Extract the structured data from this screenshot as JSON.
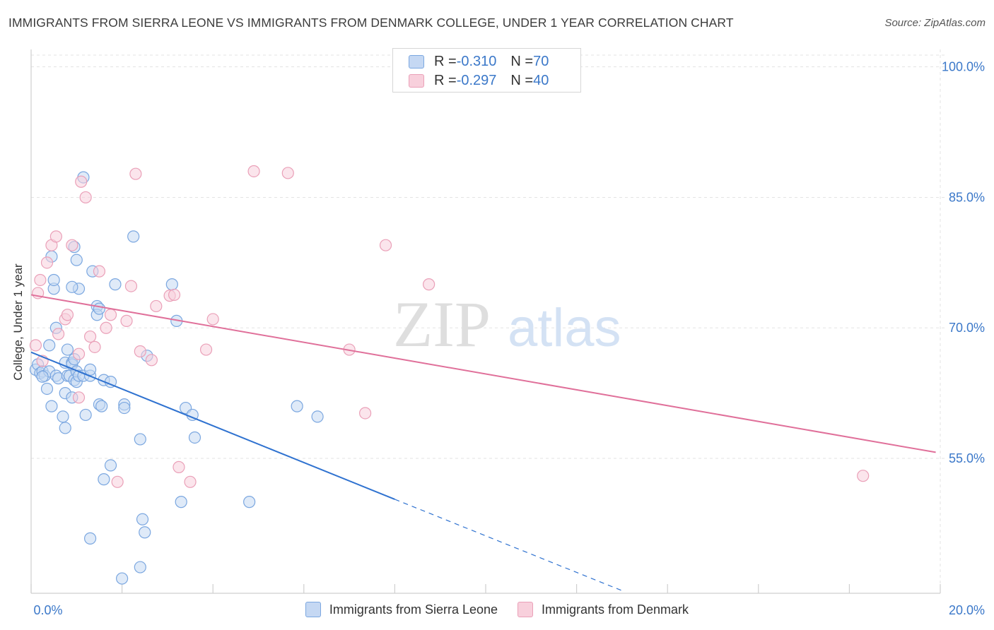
{
  "header": {
    "title": "IMMIGRANTS FROM SIERRA LEONE VS IMMIGRANTS FROM DENMARK COLLEGE, UNDER 1 YEAR CORRELATION CHART",
    "source": "Source: ZipAtlas.com"
  },
  "legend": {
    "r_label": "R = ",
    "n_label": "N = ",
    "rows": [
      {
        "r": "-0.310",
        "n": "70",
        "color": "#9ec0ec"
      },
      {
        "r": "-0.297",
        "n": "40",
        "color": "#f4b6c8"
      }
    ]
  },
  "watermark": {
    "zip": "ZIP",
    "atlas": "atlas"
  },
  "colors": {
    "blue_fill": "#c5d8f3",
    "blue_stroke": "#7ba7e0",
    "blue_line": "#2f72d0",
    "pink_fill": "#f8d0dc",
    "pink_stroke": "#eaa0b8",
    "pink_line": "#e0709a",
    "tick_label": "#3b78c9",
    "grid": "#e3e3e3"
  },
  "chart_data": {
    "type": "scatter",
    "title": "IMMIGRANTS FROM SIERRA LEONE VS IMMIGRANTS FROM DENMARK COLLEGE, UNDER 1 YEAR CORRELATION CHART",
    "xlabel": "",
    "ylabel": "College, Under 1 year",
    "xlim": [
      0,
      20
    ],
    "ylim": [
      39.5,
      102
    ],
    "x_tick_labels": [
      "0.0%",
      "20.0%"
    ],
    "y_ticks": [
      55,
      70,
      85,
      100
    ],
    "y_tick_labels": [
      "55.0%",
      "70.0%",
      "85.0%",
      "100.0%"
    ],
    "grid": true,
    "legend_position": "bottom",
    "series": [
      {
        "name": "Immigrants from Sierra Leone",
        "color": "#9ec0ec",
        "r": -0.31,
        "n": 70,
        "points": [
          [
            0.1,
            65.2
          ],
          [
            0.15,
            65.8
          ],
          [
            0.2,
            64.8
          ],
          [
            0.25,
            65.0
          ],
          [
            0.3,
            64.5
          ],
          [
            0.35,
            63.0
          ],
          [
            0.4,
            65.0
          ],
          [
            0.45,
            61.0
          ],
          [
            0.4,
            68.0
          ],
          [
            0.5,
            74.5
          ],
          [
            0.5,
            75.5
          ],
          [
            0.45,
            78.2
          ],
          [
            0.55,
            64.5
          ],
          [
            0.6,
            64.2
          ],
          [
            0.55,
            70.0
          ],
          [
            0.7,
            59.8
          ],
          [
            0.75,
            58.5
          ],
          [
            0.75,
            62.5
          ],
          [
            0.75,
            66.0
          ],
          [
            0.8,
            64.5
          ],
          [
            0.85,
            64.5
          ],
          [
            0.8,
            67.5
          ],
          [
            0.9,
            66.0
          ],
          [
            0.9,
            65.8
          ],
          [
            0.95,
            64.0
          ],
          [
            0.9,
            62.0
          ],
          [
            0.95,
            66.4
          ],
          [
            1.0,
            63.8
          ],
          [
            1.0,
            65.0
          ],
          [
            1.05,
            64.5
          ],
          [
            0.95,
            79.3
          ],
          [
            1.0,
            77.8
          ],
          [
            1.05,
            74.5
          ],
          [
            0.9,
            74.7
          ],
          [
            1.15,
            87.3
          ],
          [
            1.15,
            64.5
          ],
          [
            1.3,
            64.5
          ],
          [
            1.35,
            76.5
          ],
          [
            1.45,
            72.5
          ],
          [
            1.45,
            71.5
          ],
          [
            1.5,
            72.2
          ],
          [
            1.5,
            61.2
          ],
          [
            1.55,
            61.0
          ],
          [
            1.6,
            64.0
          ],
          [
            1.6,
            52.6
          ],
          [
            1.3,
            65.2
          ],
          [
            1.75,
            63.8
          ],
          [
            1.75,
            54.2
          ],
          [
            1.85,
            75.0
          ],
          [
            2.05,
            61.2
          ],
          [
            2.05,
            60.8
          ],
          [
            2.25,
            80.5
          ],
          [
            2.4,
            57.2
          ],
          [
            2.55,
            66.8
          ],
          [
            2.45,
            48.0
          ],
          [
            2.5,
            46.5
          ],
          [
            1.3,
            45.8
          ],
          [
            2.4,
            42.5
          ],
          [
            2.0,
            41.2
          ],
          [
            3.1,
            75.0
          ],
          [
            3.2,
            70.8
          ],
          [
            3.4,
            60.8
          ],
          [
            3.55,
            60.0
          ],
          [
            3.6,
            57.4
          ],
          [
            3.3,
            50.0
          ],
          [
            4.8,
            50.0
          ],
          [
            5.85,
            61.0
          ],
          [
            6.3,
            59.8
          ],
          [
            1.2,
            60.0
          ],
          [
            0.25,
            64.4
          ]
        ]
      },
      {
        "name": "Immigrants from Denmark",
        "color": "#f4b6c8",
        "r": -0.297,
        "n": 40,
        "points": [
          [
            0.1,
            68.0
          ],
          [
            0.15,
            74.0
          ],
          [
            0.2,
            75.5
          ],
          [
            0.25,
            66.2
          ],
          [
            0.35,
            77.5
          ],
          [
            0.45,
            79.5
          ],
          [
            0.55,
            80.5
          ],
          [
            0.6,
            69.3
          ],
          [
            0.75,
            71.0
          ],
          [
            0.8,
            71.5
          ],
          [
            0.9,
            79.5
          ],
          [
            1.05,
            62.0
          ],
          [
            1.05,
            67.0
          ],
          [
            1.1,
            86.8
          ],
          [
            1.2,
            85.0
          ],
          [
            1.3,
            69.0
          ],
          [
            1.4,
            67.8
          ],
          [
            1.5,
            76.5
          ],
          [
            1.65,
            70.0
          ],
          [
            1.75,
            71.5
          ],
          [
            1.9,
            52.3
          ],
          [
            2.1,
            70.8
          ],
          [
            2.2,
            74.8
          ],
          [
            2.3,
            87.7
          ],
          [
            2.4,
            67.3
          ],
          [
            2.65,
            66.3
          ],
          [
            2.75,
            72.5
          ],
          [
            3.05,
            73.7
          ],
          [
            3.15,
            73.8
          ],
          [
            3.25,
            54.0
          ],
          [
            3.5,
            52.3
          ],
          [
            3.85,
            67.5
          ],
          [
            4.0,
            71.0
          ],
          [
            4.9,
            88.0
          ],
          [
            5.65,
            87.8
          ],
          [
            7.0,
            67.5
          ],
          [
            7.35,
            60.2
          ],
          [
            7.8,
            79.5
          ],
          [
            8.75,
            75.0
          ],
          [
            18.3,
            53.0
          ]
        ]
      }
    ],
    "trend_lines": [
      {
        "series": "Immigrants from Sierra Leone",
        "x0": 0,
        "y0": 67.2,
        "x1": 8.0,
        "y1": 50.3,
        "dashed_to_x": 13.0,
        "dashed_to_y": 39.8
      },
      {
        "series": "Immigrants from Denmark",
        "x0": 0,
        "y0": 73.8,
        "x1": 19.9,
        "y1": 55.7
      }
    ]
  }
}
